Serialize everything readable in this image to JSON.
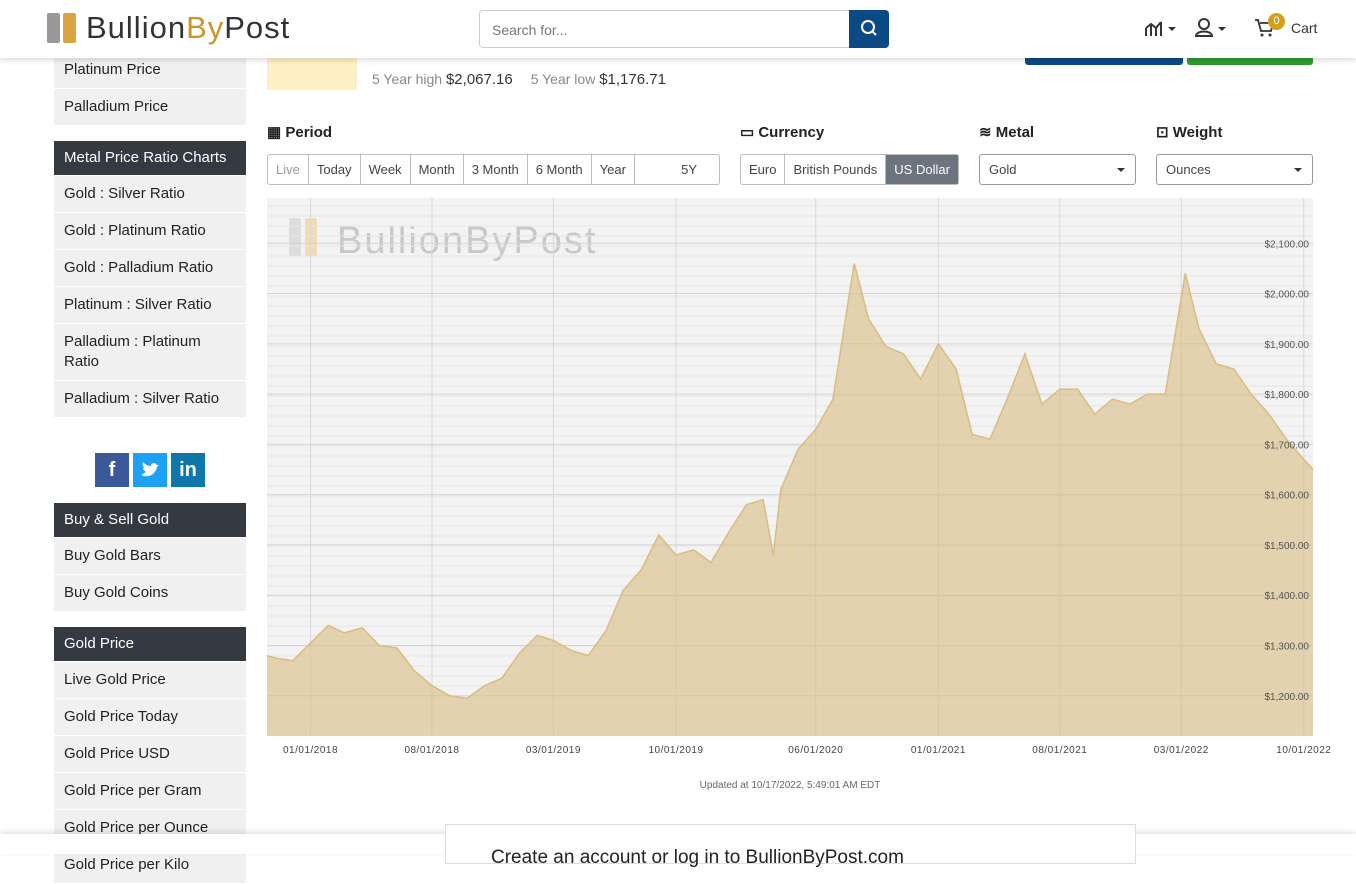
{
  "header": {
    "logo": [
      "Bullion",
      "By",
      "Post"
    ],
    "search_placeholder": "Search for...",
    "cart_count": 0,
    "cart": "Cart"
  },
  "summary": {
    "high_label": "5 Year high",
    "high": "$2,067.16",
    "low_label": "5 Year low",
    "low": "$1,176.71"
  },
  "sidebar": [
    {
      "items": [
        "Platinum Price",
        "Palladium Price"
      ]
    },
    {
      "heading": "Metal Price Ratio Charts",
      "items": [
        "Gold : Silver Ratio",
        "Gold : Platinum Ratio",
        "Gold : Palladium Ratio",
        "Platinum : Silver Ratio",
        "Palladium : Platinum Ratio",
        "Palladium : Silver Ratio"
      ]
    },
    {
      "heading": "Buy & Sell Gold",
      "items": [
        "Buy Gold Bars",
        "Buy Gold Coins"
      ]
    },
    {
      "heading": "Gold Price",
      "items": [
        "Live Gold Price",
        "Gold Price Today",
        "Gold Price USD",
        "Gold Price per Gram",
        "Gold Price per Ounce",
        "Gold Price per Kilo"
      ]
    }
  ],
  "social": [
    "f",
    "in"
  ],
  "controls": {
    "period_label": "Period",
    "periods": [
      "Live",
      "Today",
      "Week",
      "Month",
      "3 Month",
      "6 Month",
      "Year",
      "5Y"
    ],
    "currency_label": "Currency",
    "currencies": [
      "Euro",
      "British Pounds",
      "US Dollar"
    ],
    "metal_label": "Metal",
    "metal": "Gold",
    "weight_label": "Weight",
    "weight": "Ounces"
  },
  "chart": {
    "type": "area",
    "watermark": "BullionByPost",
    "x": [
      "10/17/2017",
      "11/01/2017",
      "12/01/2017",
      "01/01/2018",
      "02/01/2018",
      "03/01/2018",
      "04/01/2018",
      "05/01/2018",
      "06/01/2018",
      "07/01/2018",
      "08/01/2018",
      "09/01/2018",
      "10/01/2018",
      "11/01/2018",
      "12/01/2018",
      "01/01/2019",
      "02/01/2019",
      "03/01/2019",
      "04/01/2019",
      "05/01/2019",
      "06/01/2019",
      "07/01/2019",
      "08/01/2019",
      "09/01/2019",
      "10/01/2019",
      "11/01/2019",
      "12/01/2019",
      "01/01/2020",
      "02/01/2020",
      "03/01/2020",
      "03/19/2020",
      "04/01/2020",
      "05/01/2020",
      "06/01/2020",
      "07/01/2020",
      "08/07/2020",
      "09/01/2020",
      "10/01/2020",
      "11/01/2020",
      "12/01/2020",
      "01/01/2021",
      "02/01/2021",
      "03/01/2021",
      "04/01/2021",
      "05/01/2021",
      "06/01/2021",
      "07/01/2021",
      "08/01/2021",
      "09/01/2021",
      "10/01/2021",
      "11/01/2021",
      "12/01/2021",
      "01/01/2022",
      "02/01/2022",
      "03/08/2022",
      "04/01/2022",
      "05/01/2022",
      "06/01/2022",
      "07/01/2022",
      "08/01/2022",
      "09/01/2022",
      "10/01/2022",
      "10/17/2022"
    ],
    "values": [
      1280,
      1275,
      1270,
      1305,
      1340,
      1325,
      1335,
      1300,
      1295,
      1250,
      1220,
      1200,
      1195,
      1220,
      1235,
      1285,
      1320,
      1310,
      1290,
      1280,
      1330,
      1410,
      1450,
      1520,
      1480,
      1490,
      1465,
      1525,
      1580,
      1590,
      1480,
      1610,
      1690,
      1730,
      1790,
      2060,
      1950,
      1895,
      1880,
      1830,
      1900,
      1850,
      1720,
      1710,
      1790,
      1880,
      1780,
      1810,
      1810,
      1760,
      1790,
      1780,
      1800,
      1800,
      2040,
      1930,
      1860,
      1850,
      1800,
      1760,
      1710,
      1670,
      1650
    ],
    "color": "#d9bc82",
    "xlim": [
      "10/17/2017",
      "10/17/2022"
    ],
    "xticks": [
      "01/01/2018",
      "08/01/2018",
      "03/01/2019",
      "10/01/2019",
      "06/01/2020",
      "01/01/2021",
      "08/01/2021",
      "03/01/2022",
      "10/01/2022"
    ],
    "ylim": [
      1120,
      2190
    ],
    "yticks": [
      {
        "value": 1200,
        "label": "$1,200.00"
      },
      {
        "value": 1300,
        "label": "$1,300.00"
      },
      {
        "value": 1400,
        "label": "$1,400.00"
      },
      {
        "value": 1500,
        "label": "$1,500.00"
      },
      {
        "value": 1600,
        "label": "$1,600.00"
      },
      {
        "value": 1700,
        "label": "$1,700.00"
      },
      {
        "value": 1800,
        "label": "$1,800.00"
      },
      {
        "value": 1900,
        "label": "$1,900.00"
      },
      {
        "value": 2000,
        "label": "$2,000.00"
      },
      {
        "value": 2100,
        "label": "$2,100.00"
      }
    ],
    "grid": true,
    "updated": "Updated at 10/17/2022, 5:49:01 AM EDT"
  },
  "banner": "Create an account or log in to BullionByPost.com"
}
